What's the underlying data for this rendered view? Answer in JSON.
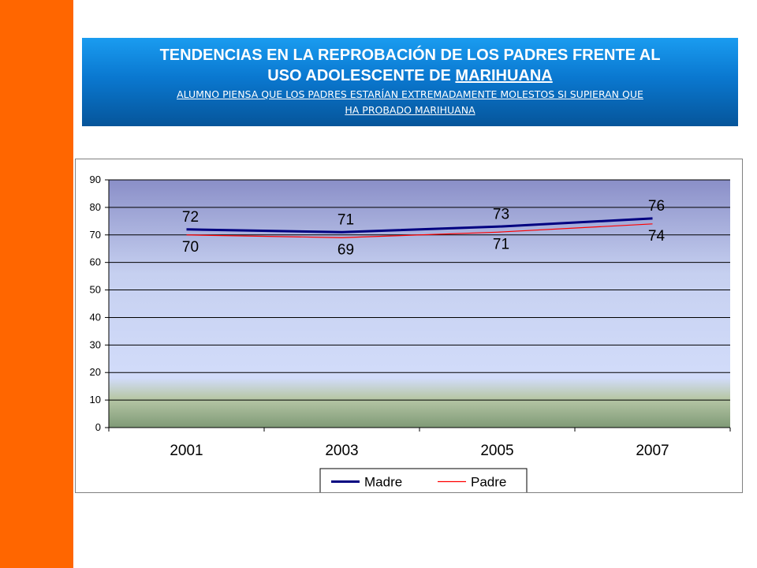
{
  "title": {
    "line1": "TENDENCIAS EN LA REPROBACIÓN  DE LOS PADRES FRENTE AL",
    "line2_prefix": "USO ADOLESCENTE  DE ",
    "line2_highlight": "MARIHUANA",
    "subtitle_line1": "ALUMNO PIENSA QUE LOS PADRES ESTARÍAN EXTREMADAMENTE MOLESTOS SI SUPIERAN QUE",
    "subtitle_line2": "HA PROBADO MARIHUANA"
  },
  "colors": {
    "side_bar": "#ff6600",
    "madre": "#000080",
    "padre": "#ff0000"
  },
  "chart_data": {
    "type": "line",
    "categories": [
      "2001",
      "2003",
      "2005",
      "2007"
    ],
    "ylim": [
      0,
      90
    ],
    "yticks": [
      0,
      10,
      20,
      30,
      40,
      50,
      60,
      70,
      80,
      90
    ],
    "grid": true,
    "legend": "bottom",
    "series": [
      {
        "name": "Madre",
        "color": "#000080",
        "values": [
          72,
          71,
          73,
          76
        ]
      },
      {
        "name": "Padre",
        "color": "#ff0000",
        "values": [
          70,
          69,
          71,
          74
        ]
      }
    ]
  }
}
